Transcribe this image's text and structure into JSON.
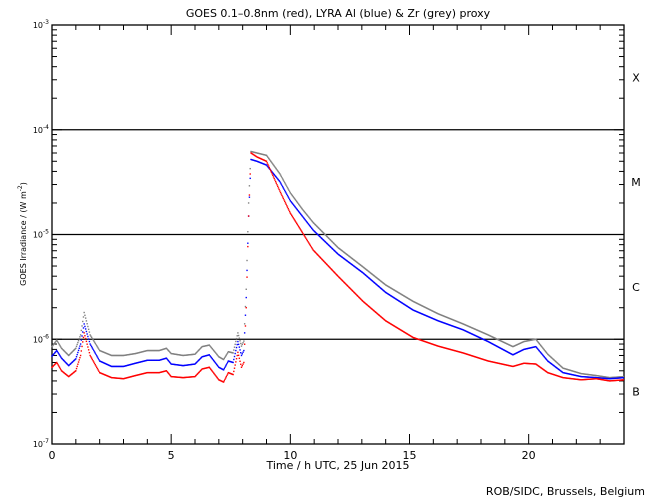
{
  "chart_data": {
    "type": "line",
    "title": "GOES 0.1–0.8nm (red), LYRA Al (blue) & Zr (grey) proxy",
    "xlabel": "Time / h UTC, 25 Jun 2015",
    "ylabel": {
      "main": "GOES Irradiance / (W m",
      "sup": "-2",
      "end": ")"
    },
    "credit": "ROB/SIDC, Brussels, Belgium",
    "xlim": [
      0,
      24
    ],
    "ylim": [
      1e-07,
      0.001
    ],
    "yscale": "log",
    "xticks": [
      {
        "v": 0,
        "label": "0"
      },
      {
        "v": 5,
        "label": "5"
      },
      {
        "v": 10,
        "label": "10"
      },
      {
        "v": 15,
        "label": "15"
      },
      {
        "v": 20,
        "label": "20"
      }
    ],
    "yticks": [
      {
        "v": -3,
        "base": "10",
        "exp": "-3"
      },
      {
        "v": -4,
        "base": "10",
        "exp": "-4"
      },
      {
        "v": -5,
        "base": "10",
        "exp": "-5"
      },
      {
        "v": -6,
        "base": "10",
        "exp": "-6"
      },
      {
        "v": -7,
        "base": "10",
        "exp": "-7"
      }
    ],
    "class_lines": [
      0.0001,
      1e-05,
      1e-06
    ],
    "class_labels": [
      {
        "label": "X",
        "v": -3.5
      },
      {
        "label": "M",
        "v": -4.5
      },
      {
        "label": "C",
        "v": -5.5
      },
      {
        "label": "B",
        "v": -6.5
      }
    ],
    "series": [
      {
        "name": "GOES 0.1-0.8nm",
        "color": "#ff0000",
        "points": [
          [
            0,
            5.4e-07
          ],
          [
            0.2,
            6e-07
          ],
          [
            0.4,
            5e-07
          ],
          [
            0.7,
            4.4e-07
          ],
          [
            1.0,
            5e-07
          ],
          [
            1.2,
            7e-07
          ],
          [
            1.35,
            1.15e-06
          ],
          [
            1.6,
            7e-07
          ],
          [
            2.0,
            4.8e-07
          ],
          [
            2.5,
            4.3e-07
          ],
          [
            3.0,
            4.2e-07
          ],
          [
            3.5,
            4.5e-07
          ],
          [
            4.0,
            4.8e-07
          ],
          [
            4.5,
            4.8e-07
          ],
          [
            4.8,
            5e-07
          ],
          [
            5.0,
            4.4e-07
          ],
          [
            5.5,
            4.3e-07
          ],
          [
            6.0,
            4.4e-07
          ],
          [
            6.3,
            5.2e-07
          ],
          [
            6.6,
            5.4e-07
          ],
          [
            7.0,
            4.1e-07
          ],
          [
            7.2,
            3.9e-07
          ],
          [
            7.4,
            4.8e-07
          ],
          [
            7.6,
            4.6e-07
          ],
          [
            7.8,
            7.5e-07
          ],
          [
            7.95,
            5.4e-07
          ],
          [
            8.05,
            6e-07
          ],
          [
            8.15,
            2e-06
          ],
          [
            8.25,
            1.5e-05
          ],
          [
            8.35,
            6e-05
          ],
          [
            8.6,
            5.5e-05
          ],
          [
            9.0,
            5e-05
          ],
          [
            9.56,
            2.6e-05
          ],
          [
            10.0,
            1.6e-05
          ],
          [
            10.5,
            1.05e-05
          ],
          [
            10.96,
            7.1e-06
          ],
          [
            12,
            4e-06
          ],
          [
            13.05,
            2.3e-06
          ],
          [
            14,
            1.5e-06
          ],
          [
            15.15,
            1.04e-06
          ],
          [
            16.2,
            8.6e-07
          ],
          [
            17.25,
            7.4e-07
          ],
          [
            18.3,
            6.2e-07
          ],
          [
            19.34,
            5.5e-07
          ],
          [
            19.8,
            5.9e-07
          ],
          [
            20.3,
            5.8e-07
          ],
          [
            20.8,
            4.8e-07
          ],
          [
            21.44,
            4.3e-07
          ],
          [
            22.2,
            4.1e-07
          ],
          [
            22.84,
            4.2e-07
          ],
          [
            23.4,
            4e-07
          ],
          [
            24,
            4.1e-07
          ]
        ]
      },
      {
        "name": "LYRA Al proxy",
        "color": "#0000ff",
        "points": [
          [
            0,
            6.9e-07
          ],
          [
            0.2,
            7.8e-07
          ],
          [
            0.4,
            6.6e-07
          ],
          [
            0.7,
            5.6e-07
          ],
          [
            1.0,
            6.5e-07
          ],
          [
            1.2,
            9e-07
          ],
          [
            1.35,
            1.4e-06
          ],
          [
            1.6,
            9e-07
          ],
          [
            2.0,
            6.2e-07
          ],
          [
            2.5,
            5.5e-07
          ],
          [
            3.0,
            5.5e-07
          ],
          [
            3.5,
            5.9e-07
          ],
          [
            4.0,
            6.3e-07
          ],
          [
            4.5,
            6.3e-07
          ],
          [
            4.8,
            6.6e-07
          ],
          [
            5.0,
            5.8e-07
          ],
          [
            5.5,
            5.6e-07
          ],
          [
            6.0,
            5.8e-07
          ],
          [
            6.3,
            6.8e-07
          ],
          [
            6.6,
            7.1e-07
          ],
          [
            7.0,
            5.4e-07
          ],
          [
            7.2,
            5.1e-07
          ],
          [
            7.4,
            6.2e-07
          ],
          [
            7.6,
            6e-07
          ],
          [
            7.8,
            9.5e-07
          ],
          [
            7.95,
            7e-07
          ],
          [
            8.05,
            7.8e-07
          ],
          [
            8.15,
            2.5e-06
          ],
          [
            8.25,
            1.5e-05
          ],
          [
            8.35,
            5.2e-05
          ],
          [
            8.6,
            5e-05
          ],
          [
            9.0,
            4.6e-05
          ],
          [
            9.56,
            3.2e-05
          ],
          [
            10.0,
            2.1e-05
          ],
          [
            10.5,
            1.5e-05
          ],
          [
            10.96,
            1.1e-05
          ],
          [
            12,
            6.5e-06
          ],
          [
            13.05,
            4.3e-06
          ],
          [
            14,
            2.8e-06
          ],
          [
            15.15,
            1.9e-06
          ],
          [
            16.2,
            1.5e-06
          ],
          [
            17.25,
            1.23e-06
          ],
          [
            18.3,
            9.5e-07
          ],
          [
            19.34,
            7.1e-07
          ],
          [
            19.8,
            8e-07
          ],
          [
            20.3,
            8.5e-07
          ],
          [
            20.8,
            6.2e-07
          ],
          [
            21.44,
            4.8e-07
          ],
          [
            22.2,
            4.4e-07
          ],
          [
            22.84,
            4.3e-07
          ],
          [
            23.4,
            4.2e-07
          ],
          [
            24,
            4.3e-07
          ]
        ]
      },
      {
        "name": "LYRA Zr proxy",
        "color": "#808080",
        "points": [
          [
            0,
            8.5e-07
          ],
          [
            0.2,
            9.8e-07
          ],
          [
            0.4,
            8.2e-07
          ],
          [
            0.7,
            7e-07
          ],
          [
            1.0,
            8.2e-07
          ],
          [
            1.2,
            1.1e-06
          ],
          [
            1.35,
            1.8e-06
          ],
          [
            1.6,
            1.1e-06
          ],
          [
            2.0,
            7.8e-07
          ],
          [
            2.5,
            7e-07
          ],
          [
            3.0,
            7e-07
          ],
          [
            3.5,
            7.3e-07
          ],
          [
            4.0,
            7.8e-07
          ],
          [
            4.5,
            7.8e-07
          ],
          [
            4.8,
            8.2e-07
          ],
          [
            5.0,
            7.3e-07
          ],
          [
            5.5,
            7e-07
          ],
          [
            6.0,
            7.2e-07
          ],
          [
            6.3,
            8.5e-07
          ],
          [
            6.6,
            8.8e-07
          ],
          [
            7.0,
            6.8e-07
          ],
          [
            7.2,
            6.4e-07
          ],
          [
            7.4,
            7.6e-07
          ],
          [
            7.6,
            7.4e-07
          ],
          [
            7.8,
            1.15e-06
          ],
          [
            7.95,
            8.6e-07
          ],
          [
            8.05,
            9.6e-07
          ],
          [
            8.15,
            3e-06
          ],
          [
            8.25,
            2e-05
          ],
          [
            8.35,
            6.2e-05
          ],
          [
            8.6,
            6e-05
          ],
          [
            9.0,
            5.7e-05
          ],
          [
            9.56,
            3.8e-05
          ],
          [
            10.0,
            2.5e-05
          ],
          [
            10.5,
            1.75e-05
          ],
          [
            10.96,
            1.3e-05
          ],
          [
            12,
            7.5e-06
          ],
          [
            13.05,
            4.9e-06
          ],
          [
            14,
            3.3e-06
          ],
          [
            15.15,
            2.3e-06
          ],
          [
            16.2,
            1.75e-06
          ],
          [
            17.25,
            1.4e-06
          ],
          [
            18.3,
            1.1e-06
          ],
          [
            19.34,
            8.5e-07
          ],
          [
            19.8,
            9.5e-07
          ],
          [
            20.3,
            1e-06
          ],
          [
            20.8,
            7.2e-07
          ],
          [
            21.44,
            5.3e-07
          ],
          [
            22.2,
            4.7e-07
          ],
          [
            22.84,
            4.5e-07
          ],
          [
            23.4,
            4.3e-07
          ],
          [
            24,
            4.4e-07
          ]
        ]
      }
    ]
  }
}
